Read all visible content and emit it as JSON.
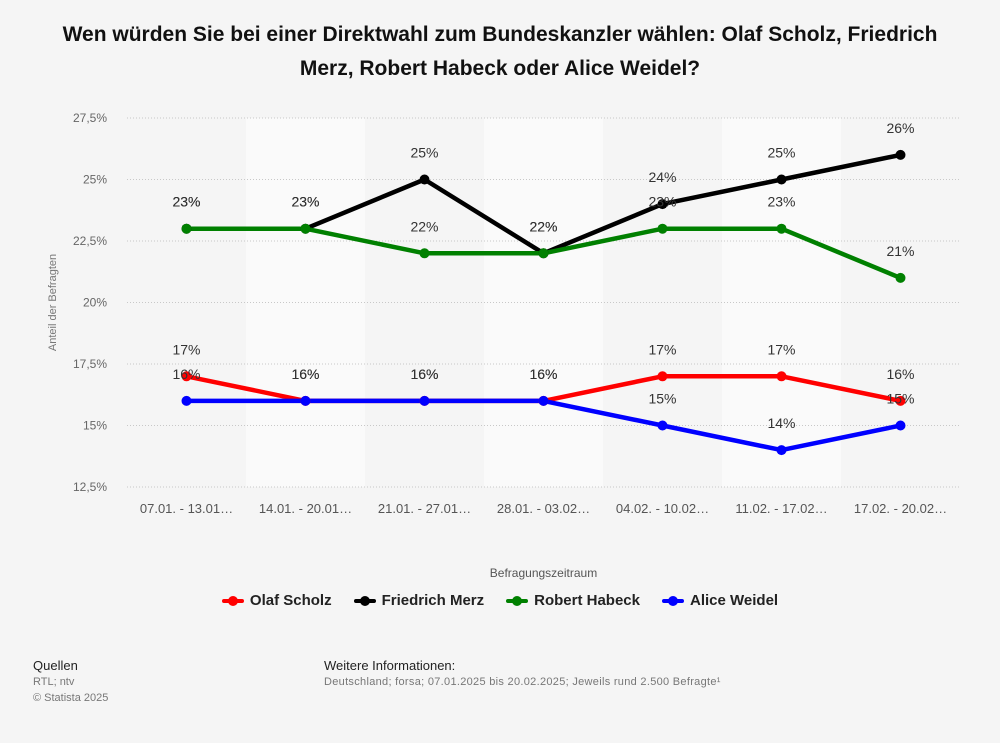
{
  "title": "Wen würden Sie bei einer Direktwahl zum Bundeskanzler wählen: Olaf Scholz, Friedrich Merz, Robert Habeck oder Alice Weidel?",
  "chart_data": {
    "type": "line",
    "title": "Wen würden Sie bei einer Direktwahl zum Bundeskanzler wählen: Olaf Scholz, Friedrich Merz, Robert Habeck oder Alice Weidel?",
    "xlabel": "Befragungszeitraum",
    "ylabel": "Anteil der Befragten",
    "ylim": [
      12.5,
      27.5
    ],
    "yticks": [
      {
        "value": 12.5,
        "label": "12,5%"
      },
      {
        "value": 15,
        "label": "15%"
      },
      {
        "value": 17.5,
        "label": "17,5%"
      },
      {
        "value": 20,
        "label": "20%"
      },
      {
        "value": 22.5,
        "label": "22,5%"
      },
      {
        "value": 25,
        "label": "25%"
      },
      {
        "value": 27.5,
        "label": "27,5%"
      }
    ],
    "categories": [
      "07.01. - 13.01…",
      "14.01. - 20.01…",
      "21.01. - 27.01…",
      "28.01. - 03.02…",
      "04.02. - 10.02…",
      "11.02. - 17.02…",
      "17.02. - 20.02…"
    ],
    "legend_position": "bottom",
    "grid": true,
    "series": [
      {
        "name": "Olaf Scholz",
        "color": "#ff0000",
        "values": [
          17,
          16,
          16,
          16,
          17,
          17,
          16
        ],
        "labels": [
          "17%",
          "16%",
          "16%",
          "16%",
          "17%",
          "17%",
          "16%"
        ]
      },
      {
        "name": "Friedrich Merz",
        "color": "#000000",
        "values": [
          23,
          23,
          25,
          22,
          24,
          25,
          26
        ],
        "labels": [
          "23%",
          "23%",
          "25%",
          "22%",
          "24%",
          "25%",
          "26%"
        ]
      },
      {
        "name": "Robert Habeck",
        "color": "#008000",
        "values": [
          23,
          23,
          22,
          22,
          23,
          23,
          21
        ],
        "labels": [
          "23%",
          "23%",
          "22%",
          "22%",
          "23%",
          "23%",
          "21%"
        ]
      },
      {
        "name": "Alice Weidel",
        "color": "#0000ff",
        "values": [
          16,
          16,
          16,
          16,
          15,
          14,
          15
        ],
        "labels": [
          "16%",
          "16%",
          "16%",
          "16%",
          "15%",
          "14%",
          "15%"
        ]
      }
    ]
  },
  "footer": {
    "sources_heading": "Quellen",
    "sources": "RTL; ntv",
    "copyright": "© Statista 2025",
    "info_heading": "Weitere Informationen:",
    "info": "Deutschland; forsa; 07.01.2025 bis 20.02.2025; Jeweils rund 2.500 Befragte¹"
  }
}
